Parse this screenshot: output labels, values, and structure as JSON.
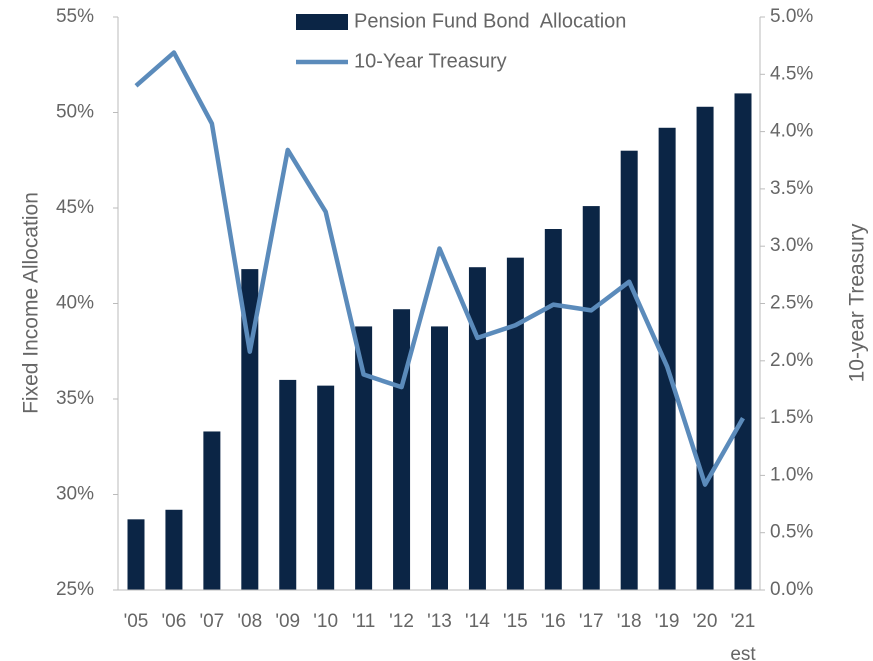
{
  "chart_data": {
    "type": "bar_line",
    "categories": [
      "'05",
      "'06",
      "'07",
      "'08",
      "'09",
      "'10",
      "'11",
      "'12",
      "'13",
      "'14",
      "'15",
      "'16",
      "'17",
      "'18",
      "'19",
      "'20",
      "'21 est"
    ],
    "series": [
      {
        "name": "Pension Fund Bond  Allocation",
        "type": "bar",
        "color": "#0b2545",
        "axis": "y",
        "values": [
          28.7,
          29.2,
          33.3,
          41.8,
          36.0,
          35.7,
          38.8,
          39.7,
          38.8,
          41.9,
          42.4,
          43.9,
          45.1,
          48.0,
          49.2,
          50.3,
          51.0
        ]
      },
      {
        "name": "10-Year Treasury",
        "type": "line",
        "color": "#5b8bbb",
        "axis": "y2",
        "values": [
          4.4,
          4.69,
          4.07,
          2.08,
          3.84,
          3.3,
          1.88,
          1.77,
          2.98,
          2.2,
          2.31,
          2.49,
          2.44,
          2.69,
          1.95,
          0.92,
          1.5
        ]
      }
    ],
    "ylabel": "Fixed Income Allocation",
    "y2label": "10-year Treasury",
    "ylim": [
      25,
      55
    ],
    "yticks": [
      {
        "value": 25,
        "label": "25%"
      },
      {
        "value": 30,
        "label": "30%"
      },
      {
        "value": 35,
        "label": "35%"
      },
      {
        "value": 40,
        "label": "40%"
      },
      {
        "value": 45,
        "label": "45%"
      },
      {
        "value": 50,
        "label": "50%"
      },
      {
        "value": 55,
        "label": "55%"
      }
    ],
    "y2lim": [
      0,
      5
    ],
    "y2ticks": [
      {
        "value": 0,
        "label": "0.0%"
      },
      {
        "value": 0.5,
        "label": "0.5%"
      },
      {
        "value": 1,
        "label": "1.0%"
      },
      {
        "value": 1.5,
        "label": "1.5%"
      },
      {
        "value": 2,
        "label": "2.0%"
      },
      {
        "value": 2.5,
        "label": "2.5%"
      },
      {
        "value": 3,
        "label": "3.0%"
      },
      {
        "value": 3.5,
        "label": "3.5%"
      },
      {
        "value": 4,
        "label": "4.0%"
      },
      {
        "value": 4.5,
        "label": "4.5%"
      },
      {
        "value": 5,
        "label": "5.0%"
      }
    ]
  }
}
